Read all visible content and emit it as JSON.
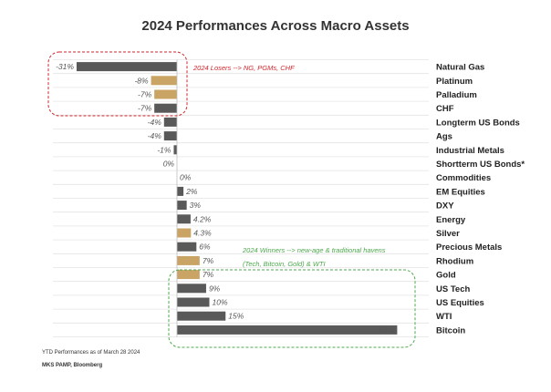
{
  "chart_data": {
    "type": "bar",
    "orientation": "horizontal",
    "title": "2024 Performances Across Macro Assets",
    "categories": [
      "Natural Gas",
      "Platinum",
      "Palladium",
      "CHF",
      "Longterm US Bonds",
      "Ags",
      "Industrial Metals",
      "Shortterm US Bonds*",
      "Commodities",
      "EM Equities",
      "DXY",
      "Energy",
      "Silver",
      "Precious Metals",
      "Rhodium",
      "Gold",
      "US Tech",
      "US Equities",
      "WTI",
      "Bitcoin"
    ],
    "values": [
      -31,
      -8,
      -7,
      -7,
      -4,
      -4,
      -1,
      0,
      0,
      2,
      3,
      4.2,
      4.3,
      6,
      7,
      7,
      9,
      10,
      15,
      68
    ],
    "value_labels": [
      "-31%",
      "-8%",
      "-7%",
      "-7%",
      "-4%",
      "-4%",
      "-1%",
      "0%",
      "0%",
      "2%",
      "3%",
      "4.2%",
      "4.3%",
      "6%",
      "7%",
      "7%",
      "9%",
      "10%",
      "15%",
      "68%"
    ],
    "highlighted": [
      "Platinum",
      "Palladium",
      "Silver",
      "Rhodium",
      "Gold"
    ],
    "colors": {
      "default": "#595959",
      "highlight": "#C9A464",
      "losers": "#D0262B",
      "winners": "#4DA84D",
      "grid": "#E4E4E4"
    },
    "legend": "none",
    "grid": true,
    "annotations": {
      "losers": "2024 Losers --> NG, PGMs, CHF",
      "winners_line1": "2024 Winners --> new-age & traditional havens",
      "winners_line2": "(Tech, Bitcoin, Gold) & WTI"
    }
  },
  "footnote": "YTD Performances as of March 28 2024",
  "source": "MKS PAMP, Bloomberg"
}
